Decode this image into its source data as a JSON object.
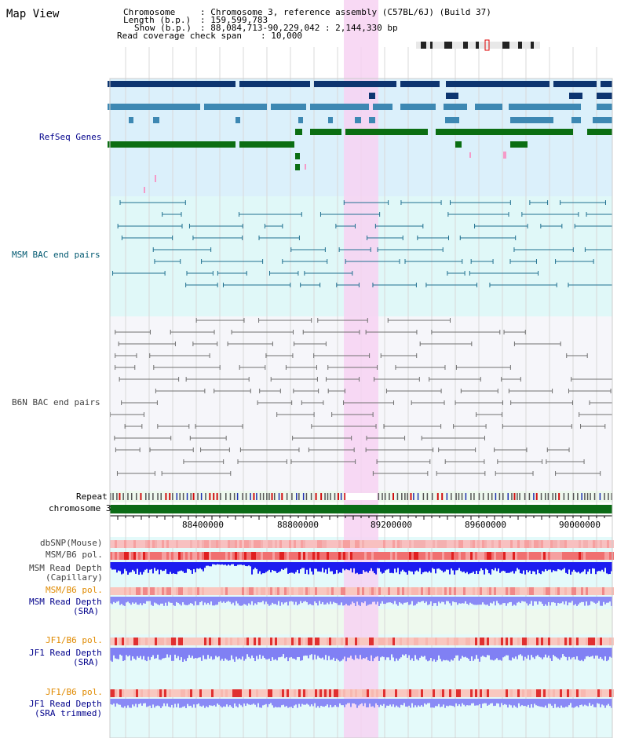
{
  "title": "Map View",
  "header": {
    "chromosome_key": "Chromosome",
    "chromosome_val": ": Chromosome 3, reference assembly (C57BL/6J) (Build 37)",
    "length_key": "Length (b.p.)",
    "length_val": ": 159,599,783",
    "show_key": "Show (b.p.)",
    "show_val": ": 88,084,713-90,229,042 : 2,144,330 bp",
    "coverage_key": "Read coverage check span",
    "coverage_val": ": 10,000"
  },
  "tracks": {
    "refseq": "RefSeq Genes",
    "msm_bac": "MSM BAC end pairs",
    "b6n_bac": "B6N BAC end pairs",
    "repeat": "Repeat",
    "chromosome": "chromosome 3",
    "dbsnp": "dbSNP(Mouse)",
    "msm_b6_pol_1": "MSM/B6 pol.",
    "msm_read_depth_cap_1": "MSM Read Depth",
    "msm_read_depth_cap_2": "(Capillary)",
    "msm_b6_pol_2": "MSM/B6 pol.",
    "msm_read_depth_sra_1": "MSM Read Depth",
    "msm_read_depth_sra_2": "(SRA)",
    "jf1_b6_pol_1": "JF1/B6 pol.",
    "jf1_read_depth_sra_1": "JF1 Read Depth",
    "jf1_read_depth_sra_2": "(SRA)",
    "jf1_b6_pol_2": "JF1/B6 pol.",
    "jf1_read_depth_trim_1": "JF1 Read Depth",
    "jf1_read_depth_trim_2": "(SRA trimmed)"
  },
  "ruler": {
    "ticks": [
      "88400000",
      "88800000",
      "89200000",
      "89600000",
      "90000000"
    ]
  },
  "colors": {
    "refseq_bg": "#dbf0fb",
    "msm_bg": "#e0f8f8",
    "b6n_bg": "#f6f6fa",
    "highlight": "#f7d2f2",
    "chromosome_bar": "#0b6b16",
    "gene_dark": "#0d3570",
    "gene_mid": "#3d88b3",
    "gene_green": "#0b6e12",
    "msm_line": "#207090",
    "b6n_line": "#707070",
    "label_blue": "#00008b",
    "label_teal": "#005870",
    "label_orange": "#e08a00",
    "label_gray": "#404040"
  }
}
